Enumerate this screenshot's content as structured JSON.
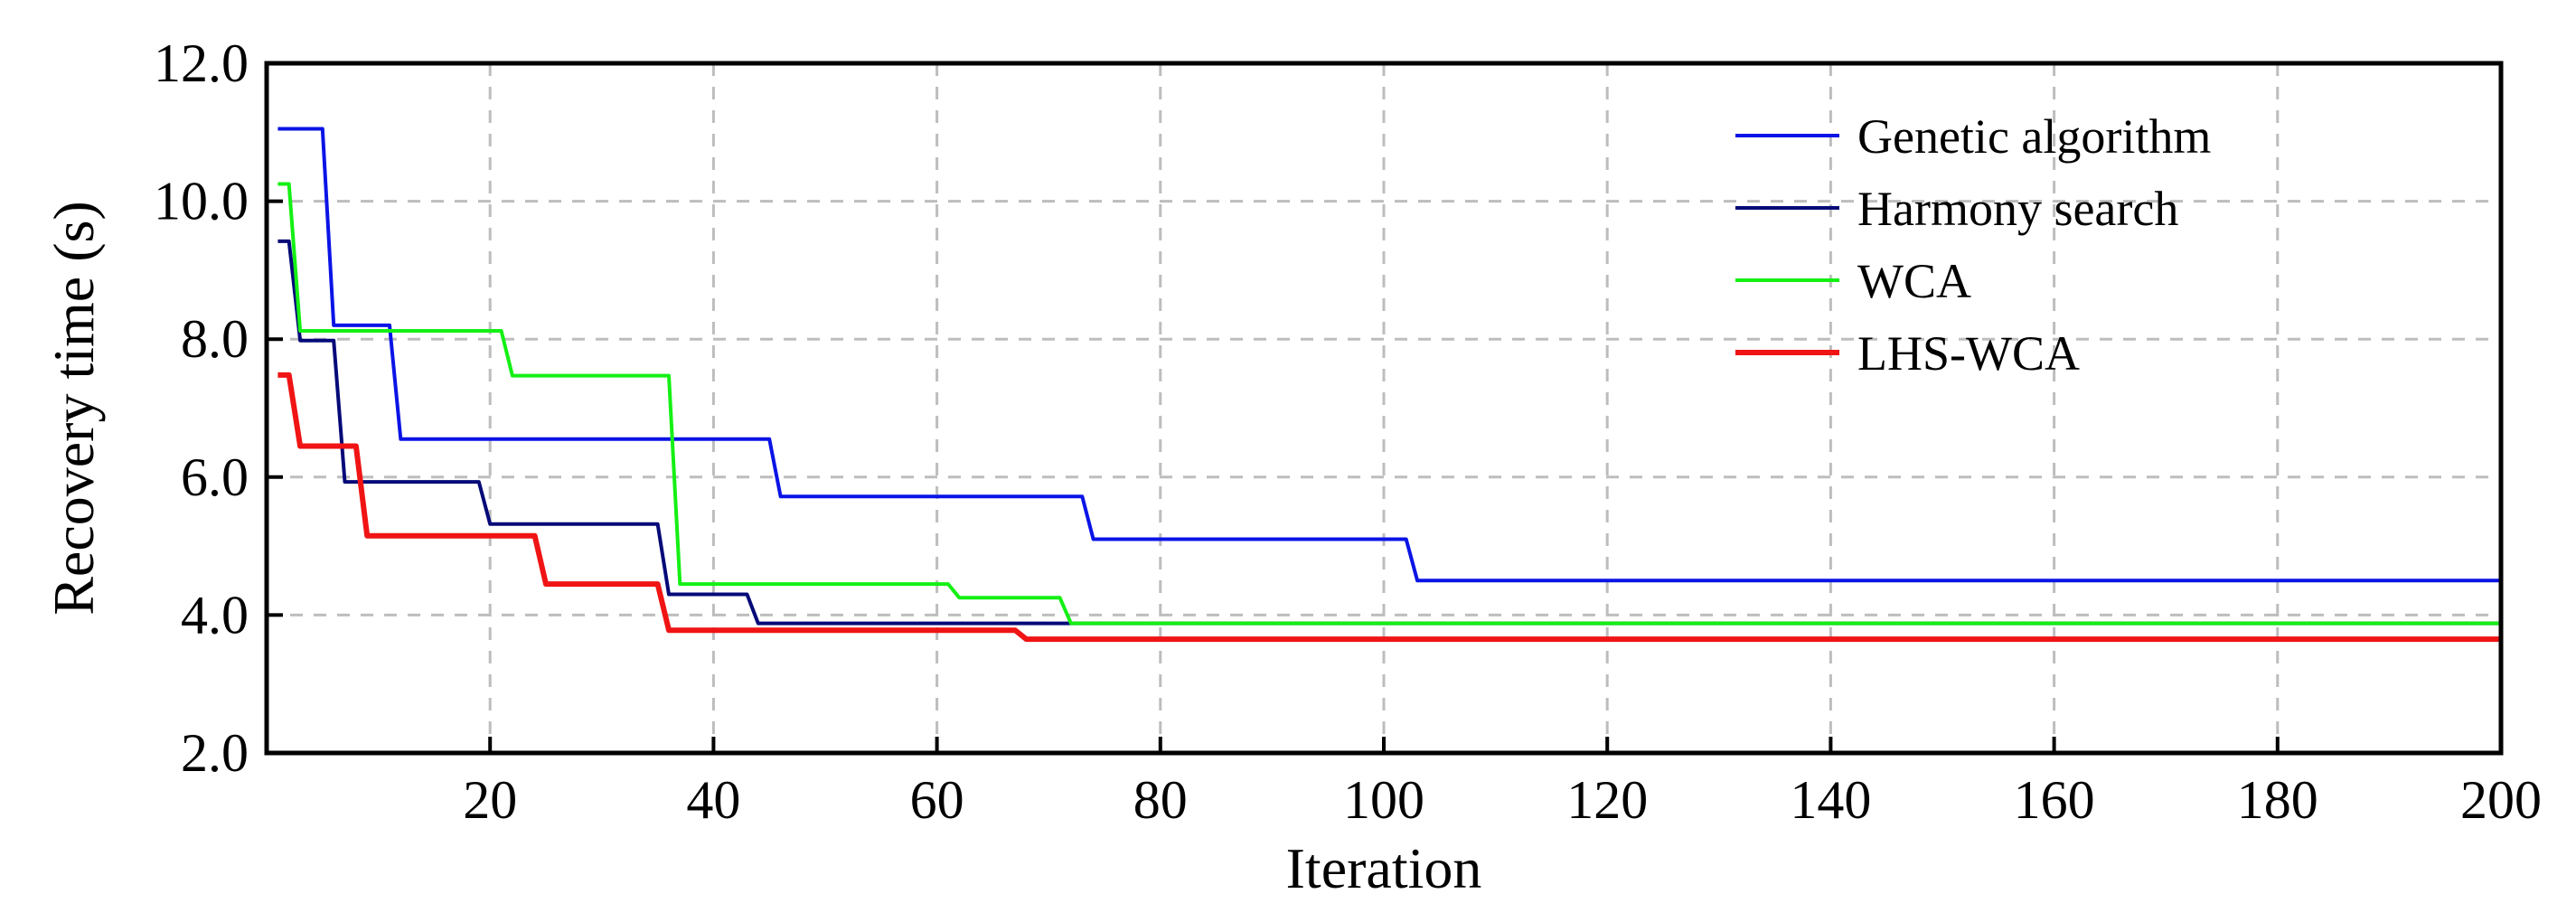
{
  "chart_data": {
    "type": "line",
    "title": "",
    "xlabel": "Iteration",
    "ylabel": "Recovery time (s)",
    "xlim": [
      0,
      200
    ],
    "ylim": [
      2.0,
      12.0
    ],
    "xticks": [
      20,
      40,
      60,
      80,
      100,
      120,
      140,
      160,
      180,
      200
    ],
    "xtick_labels": [
      "20",
      "40",
      "60",
      "80",
      "100",
      "120",
      "140",
      "160",
      "180",
      "200"
    ],
    "yticks": [
      2.0,
      4.0,
      6.0,
      8.0,
      10.0,
      12.0
    ],
    "ytick_labels": [
      "2.0",
      "4.0",
      "6.0",
      "8.0",
      "10.0",
      "12.0"
    ],
    "grid": true,
    "legend_position": "top-right",
    "series": [
      {
        "name": "Genetic algorithm",
        "color": "#0a14e6",
        "x": [
          1,
          5,
          6,
          11,
          12,
          45,
          46,
          73,
          74,
          102,
          103,
          200
        ],
        "y": [
          11.05,
          11.05,
          8.2,
          8.2,
          6.55,
          6.55,
          5.72,
          5.72,
          5.1,
          5.1,
          4.5,
          4.5
        ]
      },
      {
        "name": "Harmony search",
        "color": "#050a78",
        "x": [
          1,
          2,
          3,
          6,
          7,
          19,
          20,
          35,
          36,
          43,
          44,
          200
        ],
        "y": [
          9.42,
          9.42,
          7.98,
          7.98,
          5.93,
          5.93,
          5.32,
          5.32,
          4.3,
          4.3,
          3.88,
          3.88
        ]
      },
      {
        "name": "WCA",
        "color": "#14f014",
        "x": [
          1,
          2,
          3,
          21,
          22,
          36,
          37,
          61,
          62,
          71,
          72,
          200
        ],
        "y": [
          10.25,
          10.25,
          8.12,
          8.12,
          7.47,
          7.47,
          4.45,
          4.45,
          4.25,
          4.25,
          3.88,
          3.88
        ]
      },
      {
        "name": "LHS-WCA",
        "color": "#f01414",
        "x": [
          1,
          2,
          3,
          8,
          9,
          24,
          25,
          35,
          36,
          67,
          68,
          200
        ],
        "y": [
          7.48,
          7.48,
          6.45,
          6.45,
          5.15,
          5.15,
          4.45,
          4.45,
          3.78,
          3.78,
          3.65,
          3.65
        ]
      }
    ]
  }
}
